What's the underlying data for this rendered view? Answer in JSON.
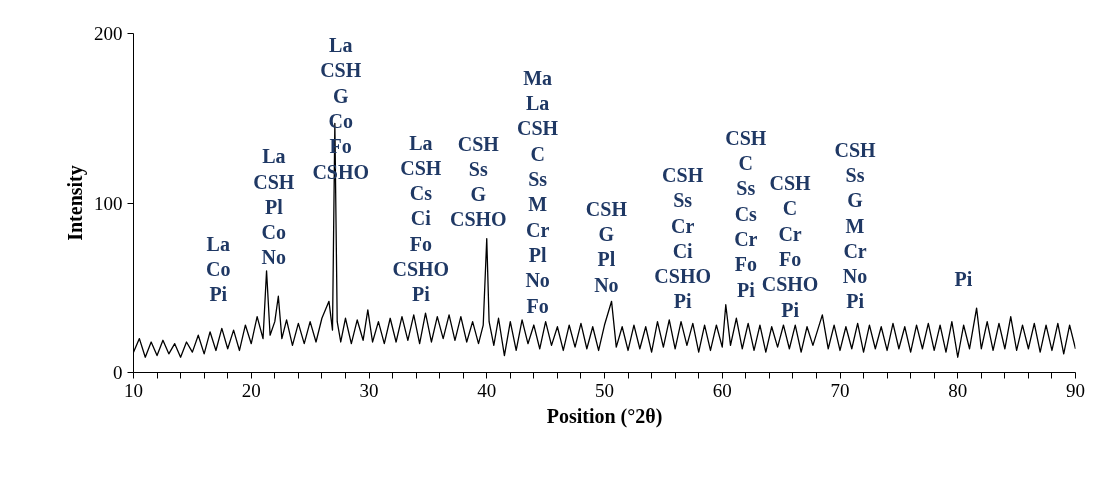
{
  "chart_data": {
    "type": "line",
    "xlabel": "Position (°2θ)",
    "ylabel": "Intensity",
    "xlim": [
      10,
      90
    ],
    "ylim": [
      0,
      200
    ],
    "xticks": [
      10,
      {
        "value": 12,
        "label": null
      },
      {
        "value": 14,
        "label": null
      },
      {
        "value": 16,
        "label": null
      },
      {
        "value": 18,
        "label": null
      },
      20,
      {
        "value": 22,
        "label": null
      },
      {
        "value": 24,
        "label": null
      },
      {
        "value": 26,
        "label": null
      },
      {
        "value": 28,
        "label": null
      },
      30,
      {
        "value": 32,
        "label": null
      },
      {
        "value": 34,
        "label": null
      },
      {
        "value": 36,
        "label": null
      },
      {
        "value": 38,
        "label": null
      },
      40,
      {
        "value": 42,
        "label": null
      },
      {
        "value": 44,
        "label": null
      },
      {
        "value": 46,
        "label": null
      },
      {
        "value": 48,
        "label": null
      },
      50,
      {
        "value": 52,
        "label": null
      },
      {
        "value": 54,
        "label": null
      },
      {
        "value": 56,
        "label": null
      },
      {
        "value": 58,
        "label": null
      },
      60,
      {
        "value": 62,
        "label": null
      },
      {
        "value": 64,
        "label": null
      },
      {
        "value": 66,
        "label": null
      },
      {
        "value": 68,
        "label": null
      },
      70,
      {
        "value": 72,
        "label": null
      },
      {
        "value": 74,
        "label": null
      },
      {
        "value": 76,
        "label": null
      },
      {
        "value": 78,
        "label": null
      },
      80,
      {
        "value": 82,
        "label": null
      },
      {
        "value": 84,
        "label": null
      },
      {
        "value": 86,
        "label": null
      },
      {
        "value": 88,
        "label": null
      },
      90
    ],
    "yticks": [
      0,
      100,
      200
    ],
    "grid": false,
    "marker": "none",
    "line_style": "solid",
    "series": [
      {
        "color": "#000000",
        "x": [
          10,
          10.5,
          11,
          11.5,
          12,
          12.5,
          13,
          13.5,
          14,
          14.5,
          15,
          15.5,
          16,
          16.5,
          17,
          17.5,
          18,
          18.5,
          19,
          19.5,
          20,
          20.5,
          21,
          21.3,
          21.6,
          22,
          22.3,
          22.6,
          23,
          23.5,
          24,
          24.5,
          25,
          25.5,
          26,
          26.6,
          26.9,
          27.1,
          27.3,
          27.6,
          28,
          28.5,
          29,
          29.5,
          29.9,
          30.3,
          30.8,
          31.3,
          31.8,
          32.3,
          32.8,
          33.3,
          33.8,
          34.3,
          34.8,
          35.3,
          35.8,
          36.3,
          36.8,
          37.3,
          37.8,
          38.3,
          38.8,
          39.3,
          39.7,
          40,
          40.2,
          40.6,
          41,
          41.5,
          42,
          42.5,
          43,
          43.5,
          44,
          44.5,
          45,
          45.5,
          46,
          46.5,
          47,
          47.5,
          48,
          48.5,
          49,
          49.5,
          50,
          50.6,
          51,
          51.5,
          52,
          52.5,
          53,
          53.5,
          54,
          54.5,
          55,
          55.5,
          56,
          56.5,
          57,
          57.5,
          58,
          58.5,
          59,
          59.5,
          60,
          60.3,
          60.7,
          61.2,
          61.7,
          62.2,
          62.7,
          63.2,
          63.7,
          64.2,
          64.7,
          65.2,
          65.7,
          66.2,
          66.7,
          67.2,
          67.7,
          68.5,
          69,
          69.5,
          70,
          70.5,
          71,
          71.5,
          72,
          72.5,
          73,
          73.5,
          74,
          74.5,
          75,
          75.5,
          76,
          76.5,
          77,
          77.5,
          78,
          78.5,
          79,
          79.5,
          80,
          80.5,
          81,
          81.6,
          82,
          82.5,
          83,
          83.5,
          84,
          84.5,
          85,
          85.5,
          86,
          86.5,
          87,
          87.5,
          88,
          88.5,
          89,
          89.5,
          90
        ],
        "values": [
          12,
          20,
          9,
          18,
          10,
          19,
          11,
          17,
          9,
          18,
          12,
          22,
          11,
          24,
          13,
          26,
          14,
          25,
          13,
          28,
          17,
          33,
          20,
          60,
          22,
          30,
          45,
          20,
          31,
          16,
          29,
          17,
          30,
          18,
          32,
          42,
          25,
          147,
          30,
          18,
          32,
          17,
          31,
          19,
          37,
          18,
          30,
          17,
          32,
          18,
          33,
          19,
          34,
          17,
          35,
          18,
          33,
          20,
          34,
          19,
          33,
          18,
          30,
          17,
          28,
          79,
          30,
          16,
          32,
          10,
          30,
          13,
          31,
          17,
          28,
          14,
          30,
          16,
          27,
          13,
          28,
          15,
          29,
          14,
          27,
          13,
          28,
          42,
          15,
          27,
          13,
          28,
          14,
          27,
          12,
          30,
          15,
          31,
          14,
          30,
          16,
          29,
          12,
          28,
          13,
          28,
          15,
          40,
          16,
          32,
          14,
          29,
          13,
          28,
          12,
          27,
          15,
          28,
          14,
          28,
          12,
          27,
          16,
          34,
          14,
          28,
          13,
          27,
          14,
          29,
          12,
          28,
          14,
          27,
          13,
          29,
          14,
          27,
          12,
          28,
          14,
          29,
          13,
          28,
          12,
          30,
          9,
          28,
          14,
          38,
          14,
          30,
          13,
          29,
          14,
          33,
          13,
          28,
          14,
          29,
          12,
          28,
          13,
          29,
          11,
          28,
          14
        ]
      }
    ],
    "annotations": [
      "La\nCo\nPi",
      "La\nCSH\nPl\nCo\nNo",
      "La\nCSH\nG\nCo\nFo\nCSHO",
      "La\nCSH\nCs\nCi\nFo\nCSHO\nPi",
      "CSH\nSs\nG\nCSHO",
      "Ma\nLa\nCSH\nC\nSs\nM\nCr\nPl\nNo\nFo",
      "CSH\nG\nPl\nNo",
      "CSH\nSs\nCr\nCi\nCSHO\nPi",
      "CSH\nC\nSs\nCs\nCr\nFo\nPi",
      "CSH\nC\nCr\nFo\nCSHO\nPi",
      "CSH\nSs\nG\nM\nCr\nNo\nPi",
      "Pi"
    ]
  }
}
